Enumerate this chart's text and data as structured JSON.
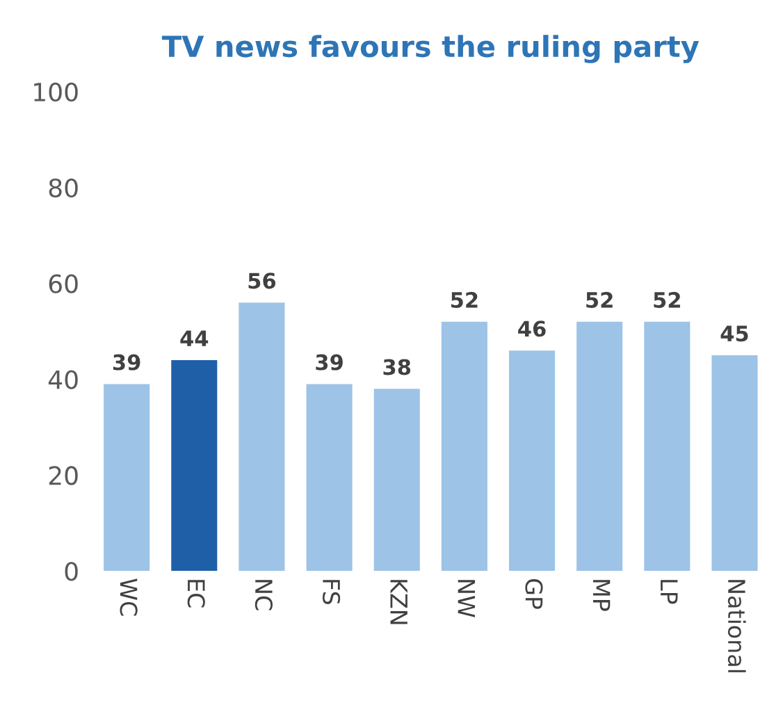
{
  "chart_data": {
    "type": "bar",
    "title": "TV news favours the ruling party",
    "categories": [
      "WC",
      "EC",
      "NC",
      "FS",
      "KZN",
      "NW",
      "GP",
      "MP",
      "LP",
      "National"
    ],
    "values": [
      39,
      44,
      56,
      39,
      38,
      52,
      46,
      52,
      52,
      45
    ],
    "colors": [
      "#9dc3e6",
      "#1f5fa8",
      "#9dc3e6",
      "#9dc3e6",
      "#9dc3e6",
      "#9dc3e6",
      "#9dc3e6",
      "#9dc3e6",
      "#9dc3e6",
      "#9dc3e6"
    ],
    "ylim": [
      0,
      100
    ],
    "yticks": [
      0,
      20,
      40,
      60,
      80,
      100
    ],
    "grid": false,
    "data_labels": true
  }
}
